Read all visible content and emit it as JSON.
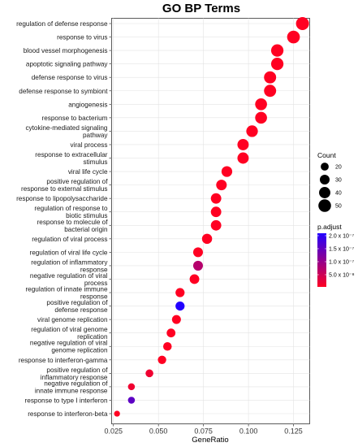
{
  "chart_data": {
    "type": "scatter",
    "title": "GO BP Terms",
    "xlabel": "GeneRatio",
    "ylabel": "",
    "xlim": [
      0.024,
      0.134
    ],
    "xticks": [
      0.025,
      0.05,
      0.075,
      0.1,
      0.125
    ],
    "xtick_labels": [
      "0.025",
      "0.050",
      "0.075",
      "0.100",
      "0.125"
    ],
    "grid": true,
    "legend_position": "right",
    "categories": [
      {
        "label": [
          "regulation of defense response"
        ],
        "x": 0.13,
        "count": 53,
        "padj": 1e-15
      },
      {
        "label": [
          "response to virus"
        ],
        "x": 0.125,
        "count": 51,
        "padj": 1e-15
      },
      {
        "label": [
          "blood vessel morphogenesis"
        ],
        "x": 0.116,
        "count": 48,
        "padj": 1e-15
      },
      {
        "label": [
          "apoptotic signaling pathway"
        ],
        "x": 0.116,
        "count": 48,
        "padj": 1e-15
      },
      {
        "label": [
          "defense response to virus"
        ],
        "x": 0.112,
        "count": 46,
        "padj": 1e-15
      },
      {
        "label": [
          "defense response to symbiont"
        ],
        "x": 0.112,
        "count": 46,
        "padj": 1e-15
      },
      {
        "label": [
          "angiogenesis"
        ],
        "x": 0.107,
        "count": 44,
        "padj": 1e-15
      },
      {
        "label": [
          "response to bacterium"
        ],
        "x": 0.107,
        "count": 44,
        "padj": 1e-15
      },
      {
        "label": [
          "cytokine-mediated signaling",
          "pathway"
        ],
        "x": 0.102,
        "count": 42,
        "padj": 1e-15
      },
      {
        "label": [
          "viral process"
        ],
        "x": 0.097,
        "count": 40,
        "padj": 1e-15
      },
      {
        "label": [
          "response to extracellular",
          "stimulus"
        ],
        "x": 0.097,
        "count": 40,
        "padj": 1e-15
      },
      {
        "label": [
          "viral life cycle"
        ],
        "x": 0.088,
        "count": 36,
        "padj": 1e-15
      },
      {
        "label": [
          "positive regulation of",
          "response to external stimulus"
        ],
        "x": 0.085,
        "count": 35,
        "padj": 1e-15
      },
      {
        "label": [
          "response to lipopolysaccharide"
        ],
        "x": 0.082,
        "count": 34,
        "padj": 1e-15
      },
      {
        "label": [
          "regulation of response to",
          "biotic stimulus"
        ],
        "x": 0.082,
        "count": 34,
        "padj": 1e-15
      },
      {
        "label": [
          "response to molecule of",
          "bacterial origin"
        ],
        "x": 0.082,
        "count": 34,
        "padj": 1e-15
      },
      {
        "label": [
          "regulation of viral process"
        ],
        "x": 0.077,
        "count": 32,
        "padj": 1e-15
      },
      {
        "label": [
          "regulation of viral life cycle"
        ],
        "x": 0.072,
        "count": 30,
        "padj": 1e-15
      },
      {
        "label": [
          "regulation of inflammatory",
          "response"
        ],
        "x": 0.072,
        "count": 30,
        "padj": 1e-07
      },
      {
        "label": [
          "negative regulation of viral",
          "process"
        ],
        "x": 0.07,
        "count": 29,
        "padj": 1e-15
      },
      {
        "label": [
          "regulation of innate immune",
          "response"
        ],
        "x": 0.062,
        "count": 26,
        "padj": 1e-15
      },
      {
        "label": [
          "positive regulation of",
          "defense response"
        ],
        "x": 0.062,
        "count": 26,
        "padj": 2e-07
      },
      {
        "label": [
          "viral genome replication"
        ],
        "x": 0.06,
        "count": 25,
        "padj": 1e-15
      },
      {
        "label": [
          "regulation of viral genome",
          "replication"
        ],
        "x": 0.057,
        "count": 24,
        "padj": 1e-15
      },
      {
        "label": [
          "negative regulation of viral",
          "genome replication"
        ],
        "x": 0.055,
        "count": 23,
        "padj": 1e-15
      },
      {
        "label": [
          "response to interferon-gamma"
        ],
        "x": 0.052,
        "count": 22,
        "padj": 1e-15
      },
      {
        "label": [
          "positive regulation of",
          "inflammatory response"
        ],
        "x": 0.045,
        "count": 19,
        "padj": 6e-08
      },
      {
        "label": [
          "negative regulation of",
          "innate immune response"
        ],
        "x": 0.035,
        "count": 15,
        "padj": 6e-08
      },
      {
        "label": [
          "response to type I interferon"
        ],
        "x": 0.035,
        "count": 15,
        "padj": 1.6e-07
      },
      {
        "label": [
          "response to interferon-beta"
        ],
        "x": 0.027,
        "count": 11,
        "padj": 1e-15
      }
    ],
    "legend": {
      "count_title": "Count",
      "count_values": [
        20,
        30,
        40,
        50
      ],
      "padj_title": "p.adjust",
      "padj_labels": [
        "2.0 x 10⁻⁷",
        "1.5 x 10⁻⁷",
        "1.0 x 10⁻⁷",
        "5.0 x 10⁻⁸"
      ],
      "padj_range": [
        2e-07,
        5e-08
      ],
      "color_high": "#ff0022",
      "color_low": "#2200ff"
    }
  }
}
